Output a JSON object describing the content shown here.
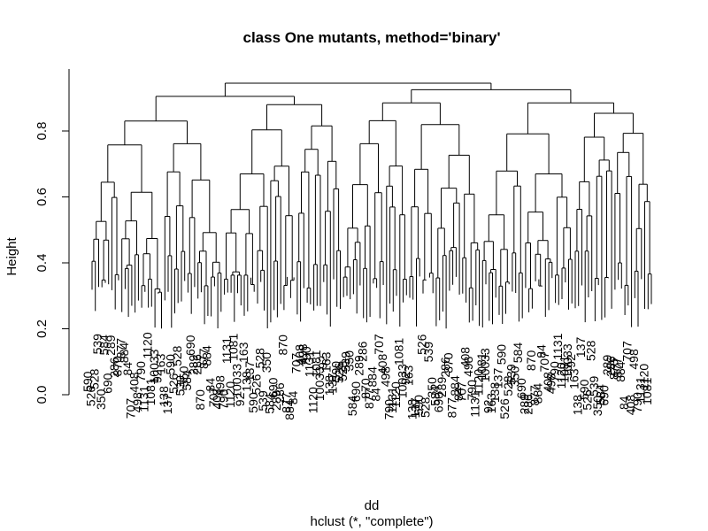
{
  "chart_data": {
    "type": "dendrogram",
    "title": "class One mutants, method='binary'",
    "ylabel": "Height",
    "xlabel": "dd",
    "sublabel": "hclust (*, \"complete\")",
    "ylim": [
      0,
      0.92
    ],
    "yticks": [
      0.0,
      0.2,
      0.4,
      0.6,
      0.8
    ],
    "ytick_labels": [
      "0.0",
      "0.2",
      "0.4",
      "0.6",
      "0.8"
    ],
    "n_leaves": 170,
    "top_merges": [
      {
        "left": "L",
        "right": "R",
        "height": 0.945
      },
      {
        "left": "LL",
        "right": "LR",
        "height": 0.905
      },
      {
        "left": "RL",
        "right": "RR",
        "height": 0.925
      },
      {
        "left": "LL1",
        "right": "LL2",
        "height": 0.83
      },
      {
        "left": "LR1",
        "right": "LR2",
        "height": 0.88
      },
      {
        "left": "RL1",
        "right": "RL2",
        "height": 0.885
      },
      {
        "left": "RR1",
        "right": "RR2",
        "height": 0.885
      }
    ],
    "visible_leaf_labels": [
      "590",
      "526",
      "528",
      "539",
      "350",
      "584",
      "690",
      "289",
      "286",
      "870",
      "877",
      "884",
      "84",
      "707",
      "408",
      "498",
      "790",
      "1131",
      "1120",
      "1081",
      "10033",
      "92",
      "163",
      "138",
      "137"
    ],
    "colors": {
      "lines": "#000000",
      "background": "#ffffff"
    }
  }
}
